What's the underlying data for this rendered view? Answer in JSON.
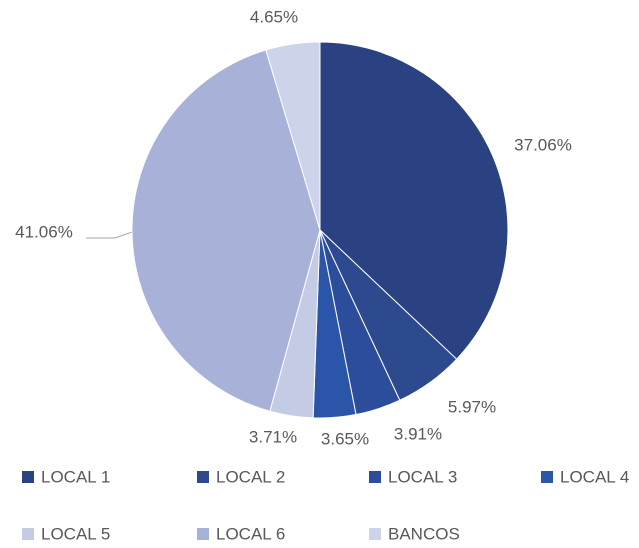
{
  "chart_data": {
    "type": "pie",
    "categories": [
      "LOCAL 1",
      "LOCAL 2",
      "LOCAL 3",
      "LOCAL 4",
      "LOCAL 5",
      "LOCAL 6",
      "BANCOS"
    ],
    "values": [
      37.06,
      5.97,
      3.91,
      3.65,
      3.71,
      41.06,
      4.65
    ],
    "value_labels": [
      "37.06%",
      "5.97%",
      "3.91%",
      "3.65%",
      "3.71%",
      "41.06%",
      "4.65%"
    ],
    "colors": [
      "#2a4282",
      "#2d4a8e",
      "#2b4d9b",
      "#2a55a8",
      "#c4cbe5",
      "#a8b2d9",
      "#cdd3eb"
    ],
    "legend": "bottom"
  }
}
